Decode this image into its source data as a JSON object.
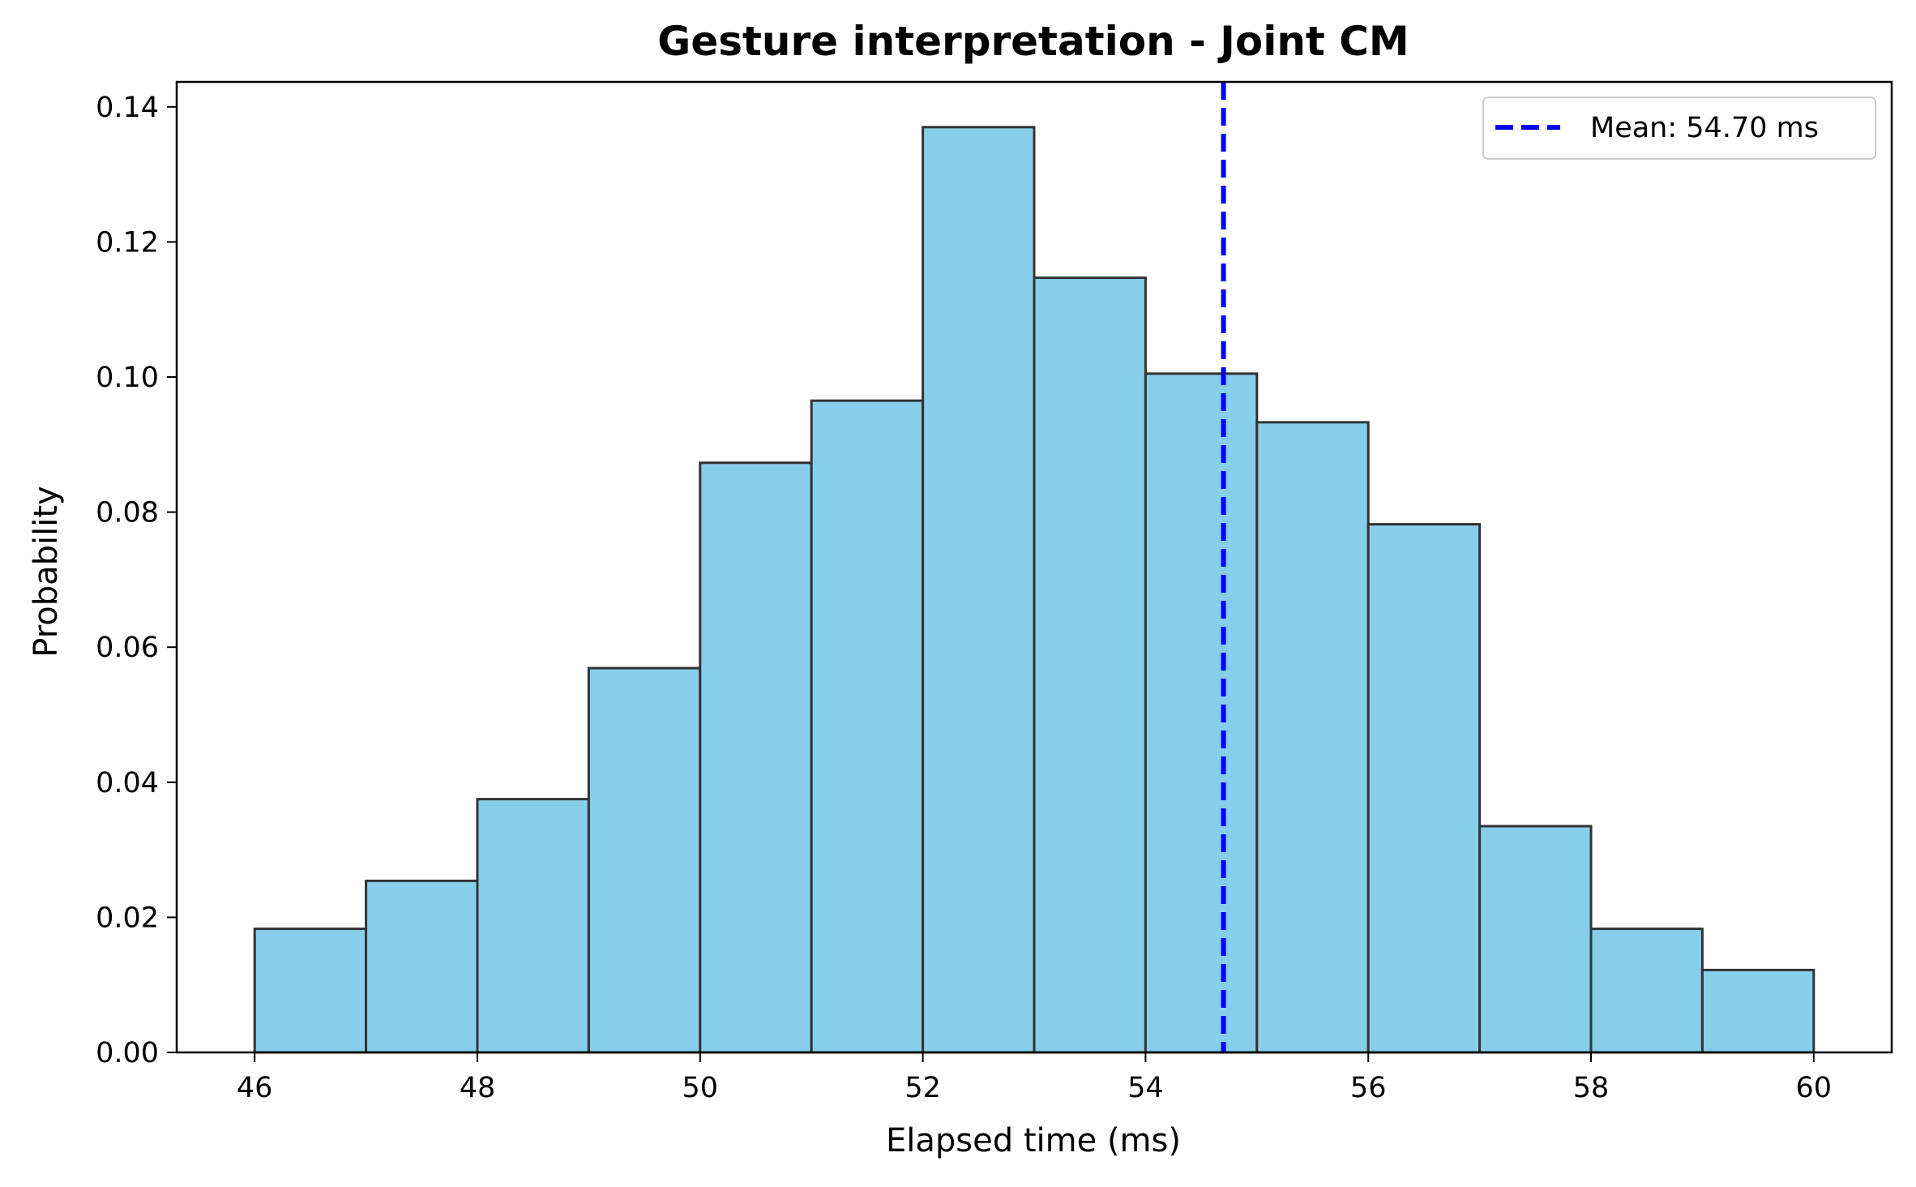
{
  "chart_data": {
    "type": "bar",
    "title": "Gesture interpretation - Joint CM",
    "xlabel": "Elapsed time (ms)",
    "ylabel": "Probability",
    "xlim": [
      45.3,
      60.7
    ],
    "ylim": [
      0,
      0.1437
    ],
    "xticks": [
      46,
      48,
      50,
      52,
      54,
      56,
      58,
      60
    ],
    "xtick_labels": [
      "46",
      "48",
      "50",
      "52",
      "54",
      "56",
      "58",
      "60"
    ],
    "yticks": [
      0,
      0.02,
      0.04,
      0.06,
      0.08,
      0.1,
      0.12,
      0.14
    ],
    "ytick_labels": [
      "0.00",
      "0.02",
      "0.04",
      "0.06",
      "0.08",
      "0.10",
      "0.12",
      "0.14"
    ],
    "bin_edges": [
      46,
      47,
      48,
      49,
      50,
      51,
      52,
      53,
      54,
      55,
      56,
      57,
      58,
      59,
      60
    ],
    "values": [
      0.0183,
      0.0254,
      0.0375,
      0.0569,
      0.0873,
      0.0965,
      0.137,
      0.1147,
      0.1005,
      0.0933,
      0.0782,
      0.0335,
      0.0183,
      0.0122
    ],
    "bar_color": "#87CEEB",
    "bar_edge_color": "#333333",
    "mean_line": {
      "x": 54.7,
      "color": "#0000FF",
      "style": "dashed"
    },
    "legend": {
      "placement": "top-right",
      "entries": [
        "Mean: 54.70 ms"
      ]
    },
    "grid": false
  }
}
